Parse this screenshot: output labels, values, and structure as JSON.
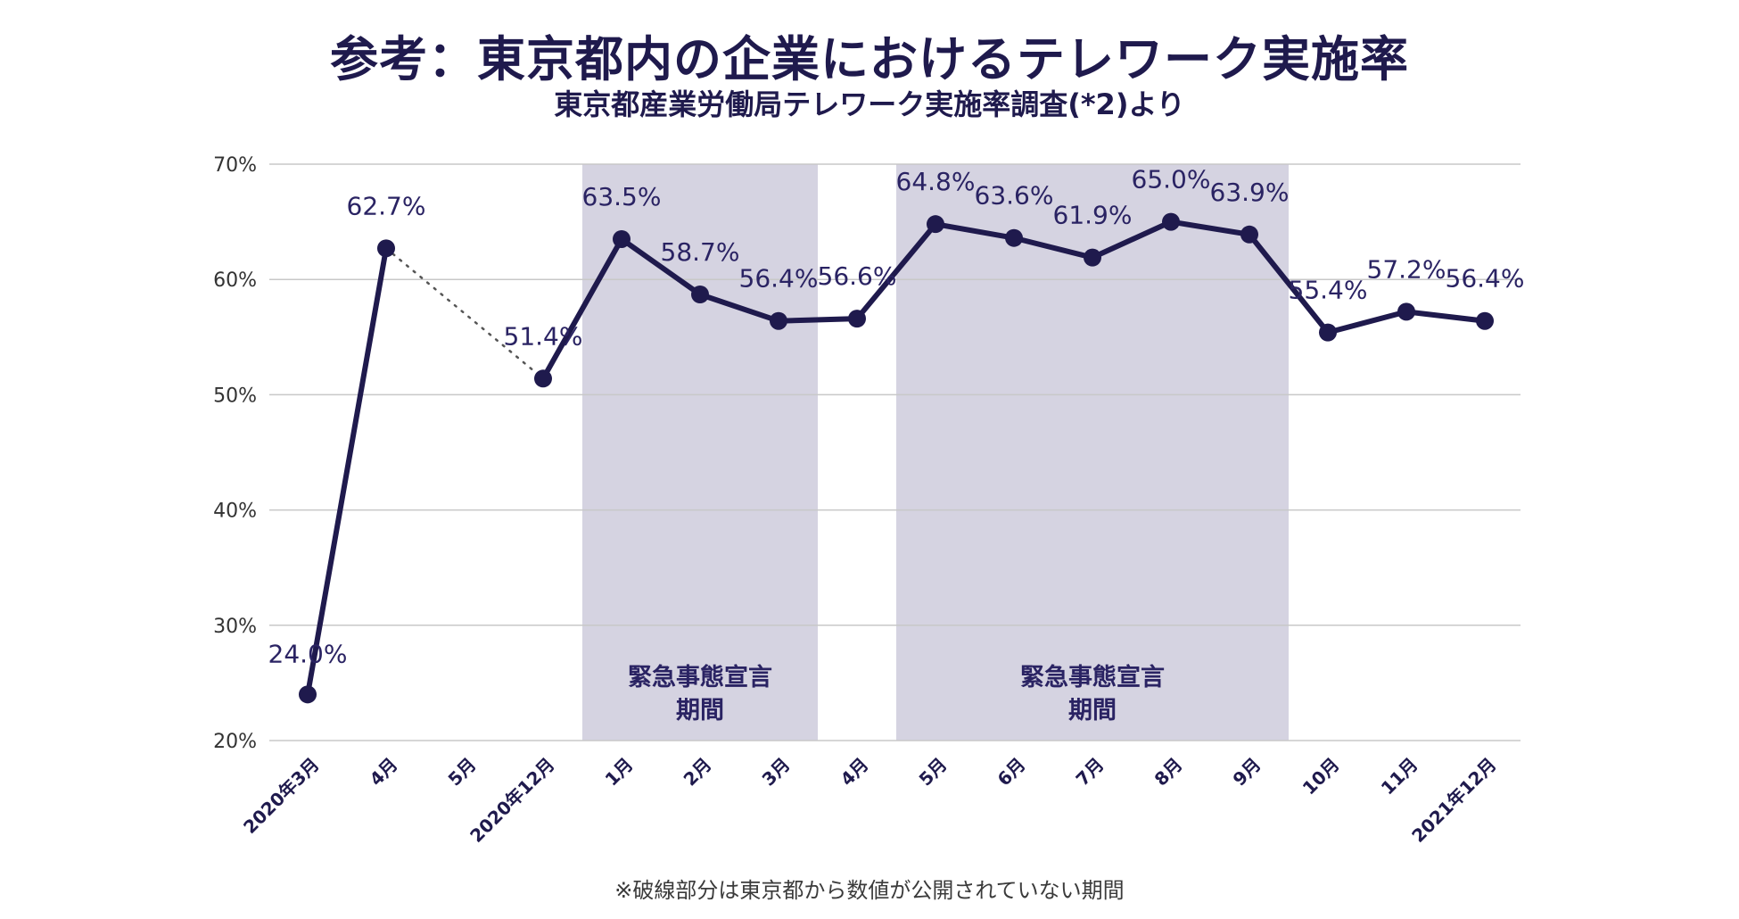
{
  "title": "参考：東京都内の企業におけるテレワーク実施率",
  "subtitle": "東京都産業労働局テレワーク実施率調査(*2)より",
  "footnote": "※破線部分は東京都から数値が公開されていない期間",
  "colors": {
    "line": "#1f1a4d",
    "shade": "#d5d3e1",
    "grid": "#c8c8c8",
    "text": "#1f1a4d"
  },
  "chart_data": {
    "type": "line",
    "title": "参考：東京都内の企業におけるテレワーク実施率",
    "subtitle": "東京都産業労働局テレワーク実施率調査(*2)より",
    "xlabel": "",
    "ylabel": "",
    "ylim": [
      20,
      70
    ],
    "yticks": [
      "20%",
      "30%",
      "40%",
      "50%",
      "60%",
      "70%"
    ],
    "categories": [
      "2020年3月",
      "4月",
      "5月",
      "2020年12月",
      "1月",
      "2月",
      "3月",
      "4月",
      "5月",
      "6月",
      "7月",
      "8月",
      "9月",
      "10月",
      "11月",
      "2021年12月"
    ],
    "series": [
      {
        "name": "テレワーク実施率",
        "values": [
          24.0,
          62.7,
          null,
          51.4,
          63.5,
          58.7,
          56.4,
          56.6,
          64.8,
          63.6,
          61.9,
          65.0,
          63.9,
          55.4,
          57.2,
          56.4
        ],
        "labels": [
          "24.0%",
          "62.7%",
          "",
          "51.4%",
          "63.5%",
          "58.7%",
          "56.4%",
          "56.6%",
          "64.8%",
          "63.6%",
          "61.9%",
          "65.0%",
          "63.9%",
          "55.4%",
          "57.2%",
          "56.4%"
        ]
      }
    ],
    "dotted_segment": {
      "from_category": "4月",
      "to_category": "2020年12月"
    },
    "shaded_periods": [
      {
        "label_line1": "緊急事態宣言",
        "label_line2": "期間",
        "from": 3.5,
        "to": 6.5
      },
      {
        "label_line1": "緊急事態宣言",
        "label_line2": "期間",
        "from": 7.5,
        "to": 12.5
      }
    ],
    "grid": true
  }
}
